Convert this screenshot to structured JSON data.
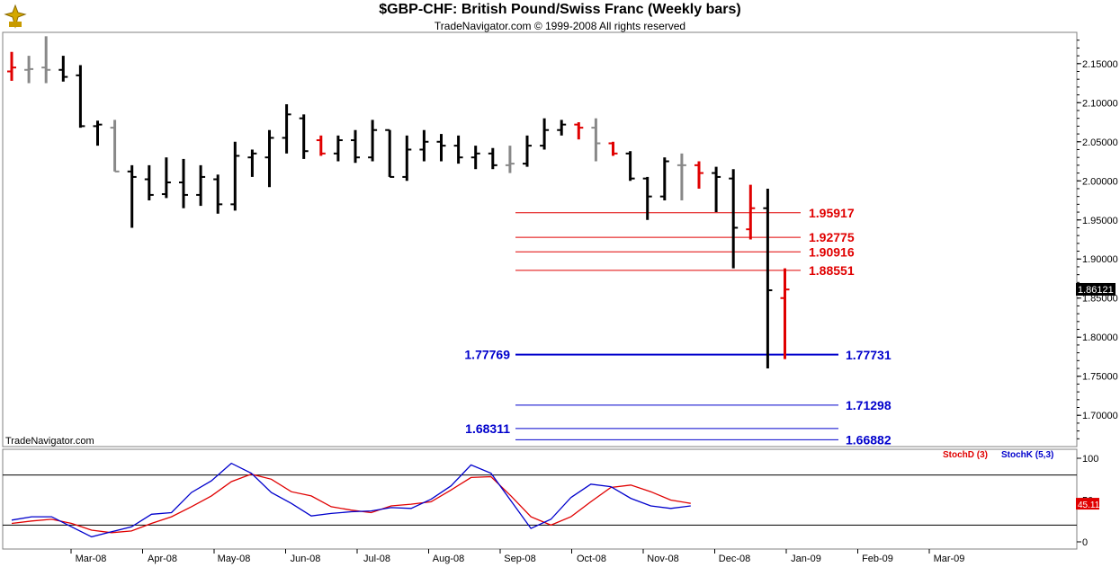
{
  "header": {
    "title": "$GBP-CHF:  British Pound/Swiss Franc  (Weekly bars)",
    "subtitle": "TradeNavigator.com © 1999-2008 All rights reserved",
    "watermark": "TradeNavigator.com"
  },
  "colors": {
    "up_bar": "#000000",
    "down_bar": "#e00000",
    "neutral_bar": "#888888",
    "fib_red": "#e00000",
    "fib_blue": "#0000cc",
    "stoch_d": "#e00000",
    "stoch_k": "#0000cc"
  },
  "chart_data": [
    {
      "type": "ohlc",
      "title": "$GBP-CHF:  British Pound/Swiss Franc  (Weekly bars)",
      "ylim": [
        1.66,
        2.19
      ],
      "y_ticks": [
        "2.15000",
        "2.10000",
        "2.05000",
        "2.00000",
        "1.95000",
        "1.90000",
        "1.85000",
        "1.80000",
        "1.75000",
        "1.70000"
      ],
      "x_ticks": [
        "Mar-08",
        "Apr-08",
        "May-08",
        "Jun-08",
        "Jul-08",
        "Aug-08",
        "Sep-08",
        "Oct-08",
        "Nov-08",
        "Dec-08",
        "Jan-09",
        "Feb-09",
        "Mar-09"
      ],
      "last_price": "1.86121",
      "bars": [
        {
          "h": 2.165,
          "l": 2.128,
          "o": 2.14,
          "c": 2.145,
          "col": "down"
        },
        {
          "h": 2.16,
          "l": 2.125,
          "o": 2.142,
          "c": 2.143,
          "col": "neutral"
        },
        {
          "h": 2.185,
          "l": 2.125,
          "o": 2.145,
          "c": 2.142,
          "col": "neutral"
        },
        {
          "h": 2.16,
          "l": 2.127,
          "o": 2.142,
          "c": 2.133,
          "col": "up"
        },
        {
          "h": 2.148,
          "l": 2.068,
          "o": 2.135,
          "c": 2.07,
          "col": "up"
        },
        {
          "h": 2.077,
          "l": 2.045,
          "o": 2.07,
          "c": 2.072,
          "col": "up"
        },
        {
          "h": 2.078,
          "l": 2.012,
          "o": 2.068,
          "c": 2.012,
          "col": "neutral"
        },
        {
          "h": 2.02,
          "l": 1.94,
          "o": 2.012,
          "c": 2.005,
          "col": "up"
        },
        {
          "h": 2.02,
          "l": 1.975,
          "o": 2.002,
          "c": 1.982,
          "col": "up"
        },
        {
          "h": 2.03,
          "l": 1.978,
          "o": 1.983,
          "c": 1.998,
          "col": "up"
        },
        {
          "h": 2.028,
          "l": 1.965,
          "o": 1.998,
          "c": 1.982,
          "col": "up"
        },
        {
          "h": 2.02,
          "l": 1.968,
          "o": 1.982,
          "c": 2.005,
          "col": "up"
        },
        {
          "h": 2.008,
          "l": 1.958,
          "o": 2.002,
          "c": 1.97,
          "col": "up"
        },
        {
          "h": 2.05,
          "l": 1.962,
          "o": 1.97,
          "c": 2.032,
          "col": "up"
        },
        {
          "h": 2.04,
          "l": 2.005,
          "o": 2.03,
          "c": 2.035,
          "col": "up"
        },
        {
          "h": 2.065,
          "l": 1.992,
          "o": 2.03,
          "c": 2.055,
          "col": "up"
        },
        {
          "h": 2.098,
          "l": 2.035,
          "o": 2.055,
          "c": 2.085,
          "col": "up"
        },
        {
          "h": 2.085,
          "l": 2.028,
          "o": 2.08,
          "c": 2.038,
          "col": "up"
        },
        {
          "h": 2.058,
          "l": 2.032,
          "o": 2.052,
          "c": 2.035,
          "col": "down"
        },
        {
          "h": 2.058,
          "l": 2.025,
          "o": 2.035,
          "c": 2.052,
          "col": "up"
        },
        {
          "h": 2.065,
          "l": 2.023,
          "o": 2.052,
          "c": 2.03,
          "col": "up"
        },
        {
          "h": 2.078,
          "l": 2.025,
          "o": 2.03,
          "c": 2.065,
          "col": "up"
        },
        {
          "h": 2.065,
          "l": 2.005,
          "o": 2.065,
          "c": 2.005,
          "col": "up"
        },
        {
          "h": 2.058,
          "l": 2.0,
          "o": 2.005,
          "c": 2.04,
          "col": "up"
        },
        {
          "h": 2.065,
          "l": 2.025,
          "o": 2.04,
          "c": 2.05,
          "col": "up"
        },
        {
          "h": 2.06,
          "l": 2.025,
          "o": 2.05,
          "c": 2.045,
          "col": "up"
        },
        {
          "h": 2.058,
          "l": 2.022,
          "o": 2.045,
          "c": 2.03,
          "col": "up"
        },
        {
          "h": 2.045,
          "l": 2.015,
          "o": 2.03,
          "c": 2.035,
          "col": "up"
        },
        {
          "h": 2.042,
          "l": 2.015,
          "o": 2.035,
          "c": 2.02,
          "col": "up"
        },
        {
          "h": 2.045,
          "l": 2.01,
          "o": 2.02,
          "c": 2.022,
          "col": "neutral"
        },
        {
          "h": 2.058,
          "l": 2.018,
          "o": 2.022,
          "c": 2.045,
          "col": "up"
        },
        {
          "h": 2.08,
          "l": 2.04,
          "o": 2.045,
          "c": 2.065,
          "col": "up"
        },
        {
          "h": 2.078,
          "l": 2.058,
          "o": 2.065,
          "c": 2.072,
          "col": "up"
        },
        {
          "h": 2.075,
          "l": 2.053,
          "o": 2.072,
          "c": 2.068,
          "col": "down"
        },
        {
          "h": 2.08,
          "l": 2.025,
          "o": 2.068,
          "c": 2.048,
          "col": "neutral"
        },
        {
          "h": 2.05,
          "l": 2.032,
          "o": 2.048,
          "c": 2.035,
          "col": "down"
        },
        {
          "h": 2.038,
          "l": 2.0,
          "o": 2.035,
          "c": 2.003,
          "col": "up"
        },
        {
          "h": 2.005,
          "l": 1.95,
          "o": 2.003,
          "c": 1.98,
          "col": "up"
        },
        {
          "h": 2.03,
          "l": 1.975,
          "o": 1.98,
          "c": 2.025,
          "col": "up"
        },
        {
          "h": 2.035,
          "l": 1.975,
          "o": 2.02,
          "c": 2.02,
          "col": "neutral"
        },
        {
          "h": 2.025,
          "l": 1.99,
          "o": 2.02,
          "c": 2.01,
          "col": "down"
        },
        {
          "h": 2.018,
          "l": 1.96,
          "o": 2.01,
          "c": 2.005,
          "col": "up"
        },
        {
          "h": 2.015,
          "l": 1.888,
          "o": 2.003,
          "c": 1.94,
          "col": "up"
        },
        {
          "h": 1.995,
          "l": 1.925,
          "o": 1.938,
          "c": 1.965,
          "col": "down"
        },
        {
          "h": 1.99,
          "l": 1.76,
          "o": 1.965,
          "c": 1.86,
          "col": "up"
        },
        {
          "h": 1.888,
          "l": 1.772,
          "o": 1.85,
          "c": 1.861,
          "col": "down"
        }
      ]
    },
    {
      "type": "line",
      "title": "",
      "ylim": [
        0,
        100
      ],
      "y_ticks": [
        "100",
        "50",
        "0"
      ],
      "legend": [
        "StochD (3)",
        "StochK (5,3)"
      ],
      "last_value": "45.11",
      "reference_levels": [
        80,
        20
      ],
      "series": [
        {
          "name": "StochD (3)",
          "color": "#e00000",
          "values": [
            22,
            25,
            27,
            22,
            14,
            11,
            13,
            22,
            30,
            42,
            55,
            72,
            81,
            75,
            60,
            55,
            42,
            38,
            35,
            43,
            45,
            48,
            62,
            77,
            78,
            55,
            30,
            20,
            30,
            48,
            65,
            68,
            60,
            50,
            46
          ]
        },
        {
          "name": "StochK (5,3)",
          "color": "#0000cc",
          "values": [
            26,
            30,
            30,
            18,
            6,
            12,
            18,
            33,
            35,
            59,
            73,
            94,
            82,
            59,
            46,
            31,
            34,
            36,
            37,
            41,
            40,
            51,
            67,
            92,
            82,
            49,
            16,
            27,
            53,
            69,
            66,
            52,
            43,
            40,
            43
          ]
        }
      ]
    }
  ],
  "fib_levels": [
    {
      "value": 1.95917,
      "label": "1.95917",
      "color": "red"
    },
    {
      "value": 1.92775,
      "label": "1.92775",
      "color": "red"
    },
    {
      "value": 1.90916,
      "label": "1.90916",
      "color": "red"
    },
    {
      "value": 1.88551,
      "label": "1.88551",
      "color": "red"
    },
    {
      "value": 1.77769,
      "label": "1.77769",
      "color": "blue",
      "side": "left",
      "thick": true
    },
    {
      "value": 1.77731,
      "label": "1.77731",
      "color": "blue"
    },
    {
      "value": 1.71298,
      "label": "1.71298",
      "color": "blue"
    },
    {
      "value": 1.68311,
      "label": "1.68311",
      "color": "blue",
      "side": "left"
    },
    {
      "value": 1.66882,
      "label": "1.66882",
      "color": "blue"
    }
  ]
}
